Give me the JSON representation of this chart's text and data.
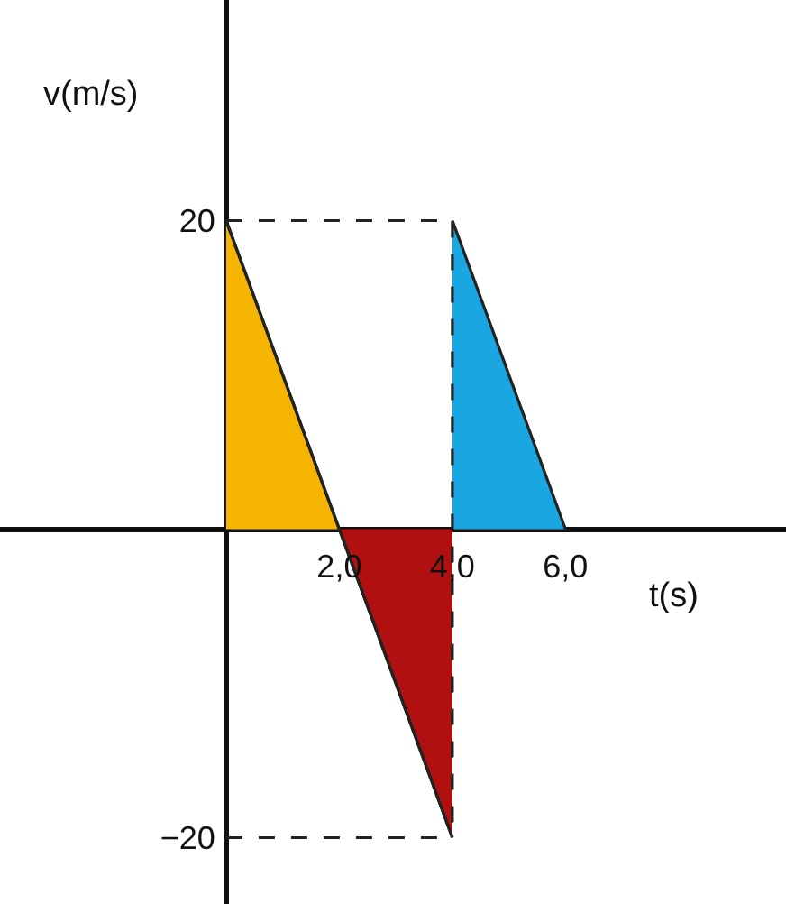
{
  "chart_data": {
    "type": "line",
    "xlabel": "t(s)",
    "ylabel": "v(m/s)",
    "xlim": [
      -4,
      9.9
    ],
    "ylim": [
      -24.3,
      34.3
    ],
    "xticks": [
      {
        "value": 2,
        "label": "2,0"
      },
      {
        "value": 4,
        "label": "4,0"
      },
      {
        "value": 6,
        "label": "6,0"
      }
    ],
    "yticks": [
      20,
      {
        "value": -20,
        "label": "−20"
      }
    ],
    "legend": false,
    "series": [
      {
        "type": "area",
        "color": "#f5b400",
        "x": [
          0,
          2
        ],
        "values": [
          20,
          0
        ]
      },
      {
        "type": "area",
        "color": "#b01010",
        "x": [
          2,
          4
        ],
        "values": [
          0,
          -20
        ]
      },
      {
        "type": "area",
        "color": "#1aa6e0",
        "x": [
          4,
          6
        ],
        "values": [
          20,
          0
        ]
      },
      {
        "color": "#222222",
        "line_style": "dashed",
        "x": [
          0,
          4,
          4
        ],
        "values": [
          20,
          20,
          -20
        ]
      },
      {
        "color": "#222222",
        "line_style": "dashed",
        "x": [
          0,
          4
        ],
        "values": [
          -20,
          -20
        ]
      },
      {
        "color": "#222222",
        "x": [
          0,
          4
        ],
        "values": [
          20,
          -20
        ]
      }
    ]
  }
}
